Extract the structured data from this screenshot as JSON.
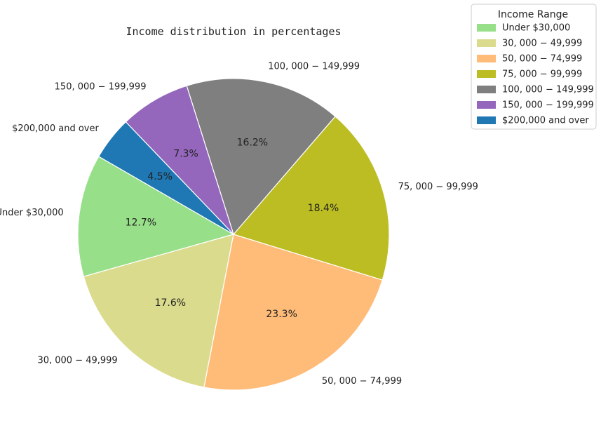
{
  "chart_data": {
    "type": "pie",
    "title": "Income distribution in percentages",
    "legend_title": "Income Range",
    "legend_position": "top-right",
    "start_angle_deg": 150,
    "direction": "counterclockwise",
    "slices": [
      {
        "label": "Under $30,000",
        "legend_label": "Under $30,000",
        "value": 12.7,
        "pct_label": "12.7%",
        "color": "#98df8a"
      },
      {
        "label": "30, 000 − 49,999",
        "legend_label": "30, 000 − 49,999",
        "value": 17.6,
        "pct_label": "17.6%",
        "color": "#dbdb8d"
      },
      {
        "label": "50, 000 − 74,999",
        "legend_label": "50, 000 − 74,999",
        "value": 23.3,
        "pct_label": "23.3%",
        "color": "#ffbb78"
      },
      {
        "label": "75, 000 − 99,999",
        "legend_label": "75, 000 − 99,999",
        "value": 18.4,
        "pct_label": "18.4%",
        "color": "#bcbd22"
      },
      {
        "label": "100, 000 − 149,999",
        "legend_label": "100, 000 − 149,999",
        "value": 16.2,
        "pct_label": "16.2%",
        "color": "#7f7f7f"
      },
      {
        "label": "150, 000 − 199,999",
        "legend_label": "150, 000 − 199,999",
        "value": 7.3,
        "pct_label": "7.3%",
        "color": "#9467bd"
      },
      {
        "label": "$200,000 and over",
        "legend_label": "$200,000 and over",
        "value": 4.5,
        "pct_label": "4.5%",
        "color": "#1f77b4"
      }
    ]
  }
}
